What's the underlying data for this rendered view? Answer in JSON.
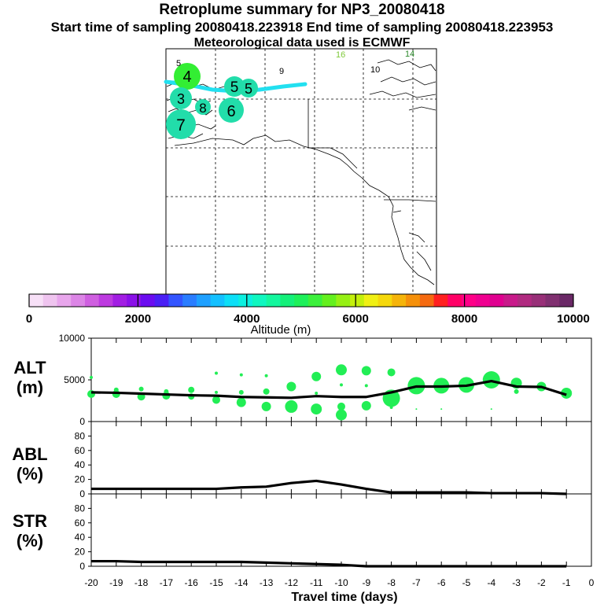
{
  "header": {
    "title": "Retroplume summary for NP3_20080418",
    "times": "Start time of sampling 20080418.223918     End time of sampling 20080418.223953",
    "met": "Meteorological data used is ECMWF"
  },
  "map": {
    "day_labels": [
      {
        "text": "5",
        "color": "#000000"
      },
      {
        "text": "9",
        "color": "#000000"
      },
      {
        "text": "16",
        "color": "#7fc93a"
      },
      {
        "text": "14",
        "color": "#2e8b2e"
      },
      {
        "text": "10",
        "color": "#000000"
      }
    ],
    "plume_markers": [
      {
        "text": "4",
        "color": "#33ee33"
      },
      {
        "text": "3",
        "color": "#22ddaa"
      },
      {
        "text": "8",
        "color": "#22ddaa"
      },
      {
        "text": "5",
        "color": "#22ddaa"
      },
      {
        "text": "5",
        "color": "#22ddaa"
      },
      {
        "text": "6",
        "color": "#22ddaa"
      },
      {
        "text": "7",
        "color": "#22ddaa"
      }
    ]
  },
  "colorbar": {
    "label": "Altitude (m)",
    "tick_labels": [
      "0",
      "2000",
      "4000",
      "6000",
      "8000",
      "10000"
    ],
    "colors": [
      "#f7e0f7",
      "#efc4ef",
      "#e8a6ec",
      "#dc85e6",
      "#cf5fe0",
      "#bd3ae0",
      "#a21ee3",
      "#8a10e8",
      "#6b0cf0",
      "#4a1ff5",
      "#3355ff",
      "#2a7dff",
      "#1fa0ff",
      "#14c0ff",
      "#0ddff7",
      "#0cf0e0",
      "#10f7c0",
      "#14f79e",
      "#14f07a",
      "#1ef05a",
      "#3cf03c",
      "#64f01e",
      "#96f014",
      "#c4f00c",
      "#f0f014",
      "#f5d80c",
      "#f5b40a",
      "#f5900a",
      "#f56a10",
      "#ff2020",
      "#ff0066",
      "#ff0088",
      "#f00090",
      "#e00090",
      "#c81a8a",
      "#b02a80",
      "#983078",
      "#803070",
      "#6a2866"
    ]
  },
  "chart_data": [
    {
      "type": "line",
      "panel": "ALT",
      "ylabel": "ALT (m)",
      "ylim": [
        0,
        10000
      ],
      "yticks": [
        "10000",
        "5000",
        "0"
      ],
      "x": [
        -20,
        -19,
        -18,
        -17,
        -16,
        -15,
        -14,
        -13,
        -12,
        -11,
        -10,
        -9,
        -8,
        -7,
        -6,
        -5,
        -4,
        -3,
        -2,
        -1
      ],
      "series": [
        {
          "name": "median altitude",
          "values": [
            3500,
            3450,
            3350,
            3250,
            3150,
            3100,
            2950,
            2900,
            2850,
            3050,
            2950,
            2950,
            3500,
            4200,
            4200,
            4300,
            4850,
            4200,
            4150,
            3200
          ]
        }
      ],
      "scatter": [
        {
          "x": -20,
          "y": 5300,
          "s": 2
        },
        {
          "x": -20,
          "y": 3300,
          "s": 5
        },
        {
          "x": -19,
          "y": 3300,
          "s": 5
        },
        {
          "x": -19,
          "y": 3800,
          "s": 3
        },
        {
          "x": -18,
          "y": 3900,
          "s": 3
        },
        {
          "x": -18,
          "y": 3000,
          "s": 5
        },
        {
          "x": -17,
          "y": 3100,
          "s": 5
        },
        {
          "x": -17,
          "y": 3600,
          "s": 3
        },
        {
          "x": -16,
          "y": 3800,
          "s": 4
        },
        {
          "x": -16,
          "y": 3000,
          "s": 4
        },
        {
          "x": -15,
          "y": 2600,
          "s": 5
        },
        {
          "x": -15,
          "y": 5800,
          "s": 2
        },
        {
          "x": -15,
          "y": 3500,
          "s": 2
        },
        {
          "x": -14,
          "y": 5600,
          "s": 2
        },
        {
          "x": -14,
          "y": 3500,
          "s": 3
        },
        {
          "x": -14,
          "y": 2300,
          "s": 6
        },
        {
          "x": -13,
          "y": 1800,
          "s": 6
        },
        {
          "x": -13,
          "y": 3600,
          "s": 4
        },
        {
          "x": -13,
          "y": 5500,
          "s": 2
        },
        {
          "x": -12,
          "y": 4200,
          "s": 6
        },
        {
          "x": -12,
          "y": 1800,
          "s": 8
        },
        {
          "x": -11,
          "y": 5400,
          "s": 6
        },
        {
          "x": -11,
          "y": 1500,
          "s": 7
        },
        {
          "x": -11,
          "y": 3400,
          "s": 2
        },
        {
          "x": -10,
          "y": 6200,
          "s": 7
        },
        {
          "x": -10,
          "y": 1800,
          "s": 5
        },
        {
          "x": -10,
          "y": 800,
          "s": 7
        },
        {
          "x": -10,
          "y": 4400,
          "s": 2
        },
        {
          "x": -9,
          "y": 6100,
          "s": 6
        },
        {
          "x": -9,
          "y": 4300,
          "s": 2
        },
        {
          "x": -9,
          "y": 1900,
          "s": 6
        },
        {
          "x": -8,
          "y": 5900,
          "s": 5
        },
        {
          "x": -8,
          "y": 2800,
          "s": 11
        },
        {
          "x": -8,
          "y": 1700,
          "s": 2
        },
        {
          "x": -7,
          "y": 4300,
          "s": 11
        },
        {
          "x": -7,
          "y": 1500,
          "s": 1
        },
        {
          "x": -6,
          "y": 4300,
          "s": 10
        },
        {
          "x": -6,
          "y": 1500,
          "s": 1
        },
        {
          "x": -5,
          "y": 4400,
          "s": 10
        },
        {
          "x": -4,
          "y": 5000,
          "s": 11
        },
        {
          "x": -4,
          "y": 1500,
          "s": 1
        },
        {
          "x": -3,
          "y": 4600,
          "s": 7
        },
        {
          "x": -3,
          "y": 3600,
          "s": 3
        },
        {
          "x": -2,
          "y": 4200,
          "s": 6
        },
        {
          "x": -1,
          "y": 3400,
          "s": 7
        }
      ]
    },
    {
      "type": "line",
      "panel": "ABL",
      "ylabel": "ABL (%)",
      "ylim": [
        0,
        100
      ],
      "yticks": [
        "80",
        "60",
        "40",
        "20",
        "0"
      ],
      "x": [
        -20,
        -19,
        -18,
        -17,
        -16,
        -15,
        -14,
        -13,
        -12,
        -11,
        -10,
        -9,
        -8,
        -7,
        -6,
        -5,
        -4,
        -3,
        -2,
        -1
      ],
      "series": [
        {
          "name": "ABL fraction",
          "values": [
            7,
            7,
            7,
            7,
            7,
            7,
            9,
            10,
            15,
            18,
            13,
            7,
            2,
            2,
            2,
            2,
            1,
            1,
            1,
            0
          ]
        }
      ]
    },
    {
      "type": "line",
      "panel": "STR",
      "ylabel": "STR (%)",
      "ylim": [
        0,
        100
      ],
      "yticks": [
        "80",
        "60",
        "40",
        "20",
        "0"
      ],
      "x": [
        -20,
        -19,
        -18,
        -17,
        -16,
        -15,
        -14,
        -13,
        -12,
        -11,
        -10,
        -9,
        -8,
        -7,
        -6,
        -5,
        -4,
        -3,
        -2,
        -1
      ],
      "series": [
        {
          "name": "stratospheric fraction",
          "values": [
            7,
            7,
            6,
            6,
            6,
            6,
            6,
            5,
            4,
            3,
            2,
            0,
            0,
            0,
            0,
            0,
            0,
            0,
            0,
            0
          ]
        }
      ]
    }
  ],
  "xaxis": {
    "label": "Travel time (days)",
    "tick_labels": [
      "-20",
      "-19",
      "-18",
      "-17",
      "-16",
      "-15",
      "-14",
      "-13",
      "-12",
      "-11",
      "-10",
      "-9",
      "-8",
      "-7",
      "-6",
      "-5",
      "-4",
      "-3",
      "-2",
      "-1",
      "0"
    ]
  },
  "panel_labels": {
    "alt": [
      "ALT",
      "(m)"
    ],
    "abl": [
      "ABL",
      "(%)"
    ],
    "str": [
      "STR",
      "(%)"
    ]
  }
}
